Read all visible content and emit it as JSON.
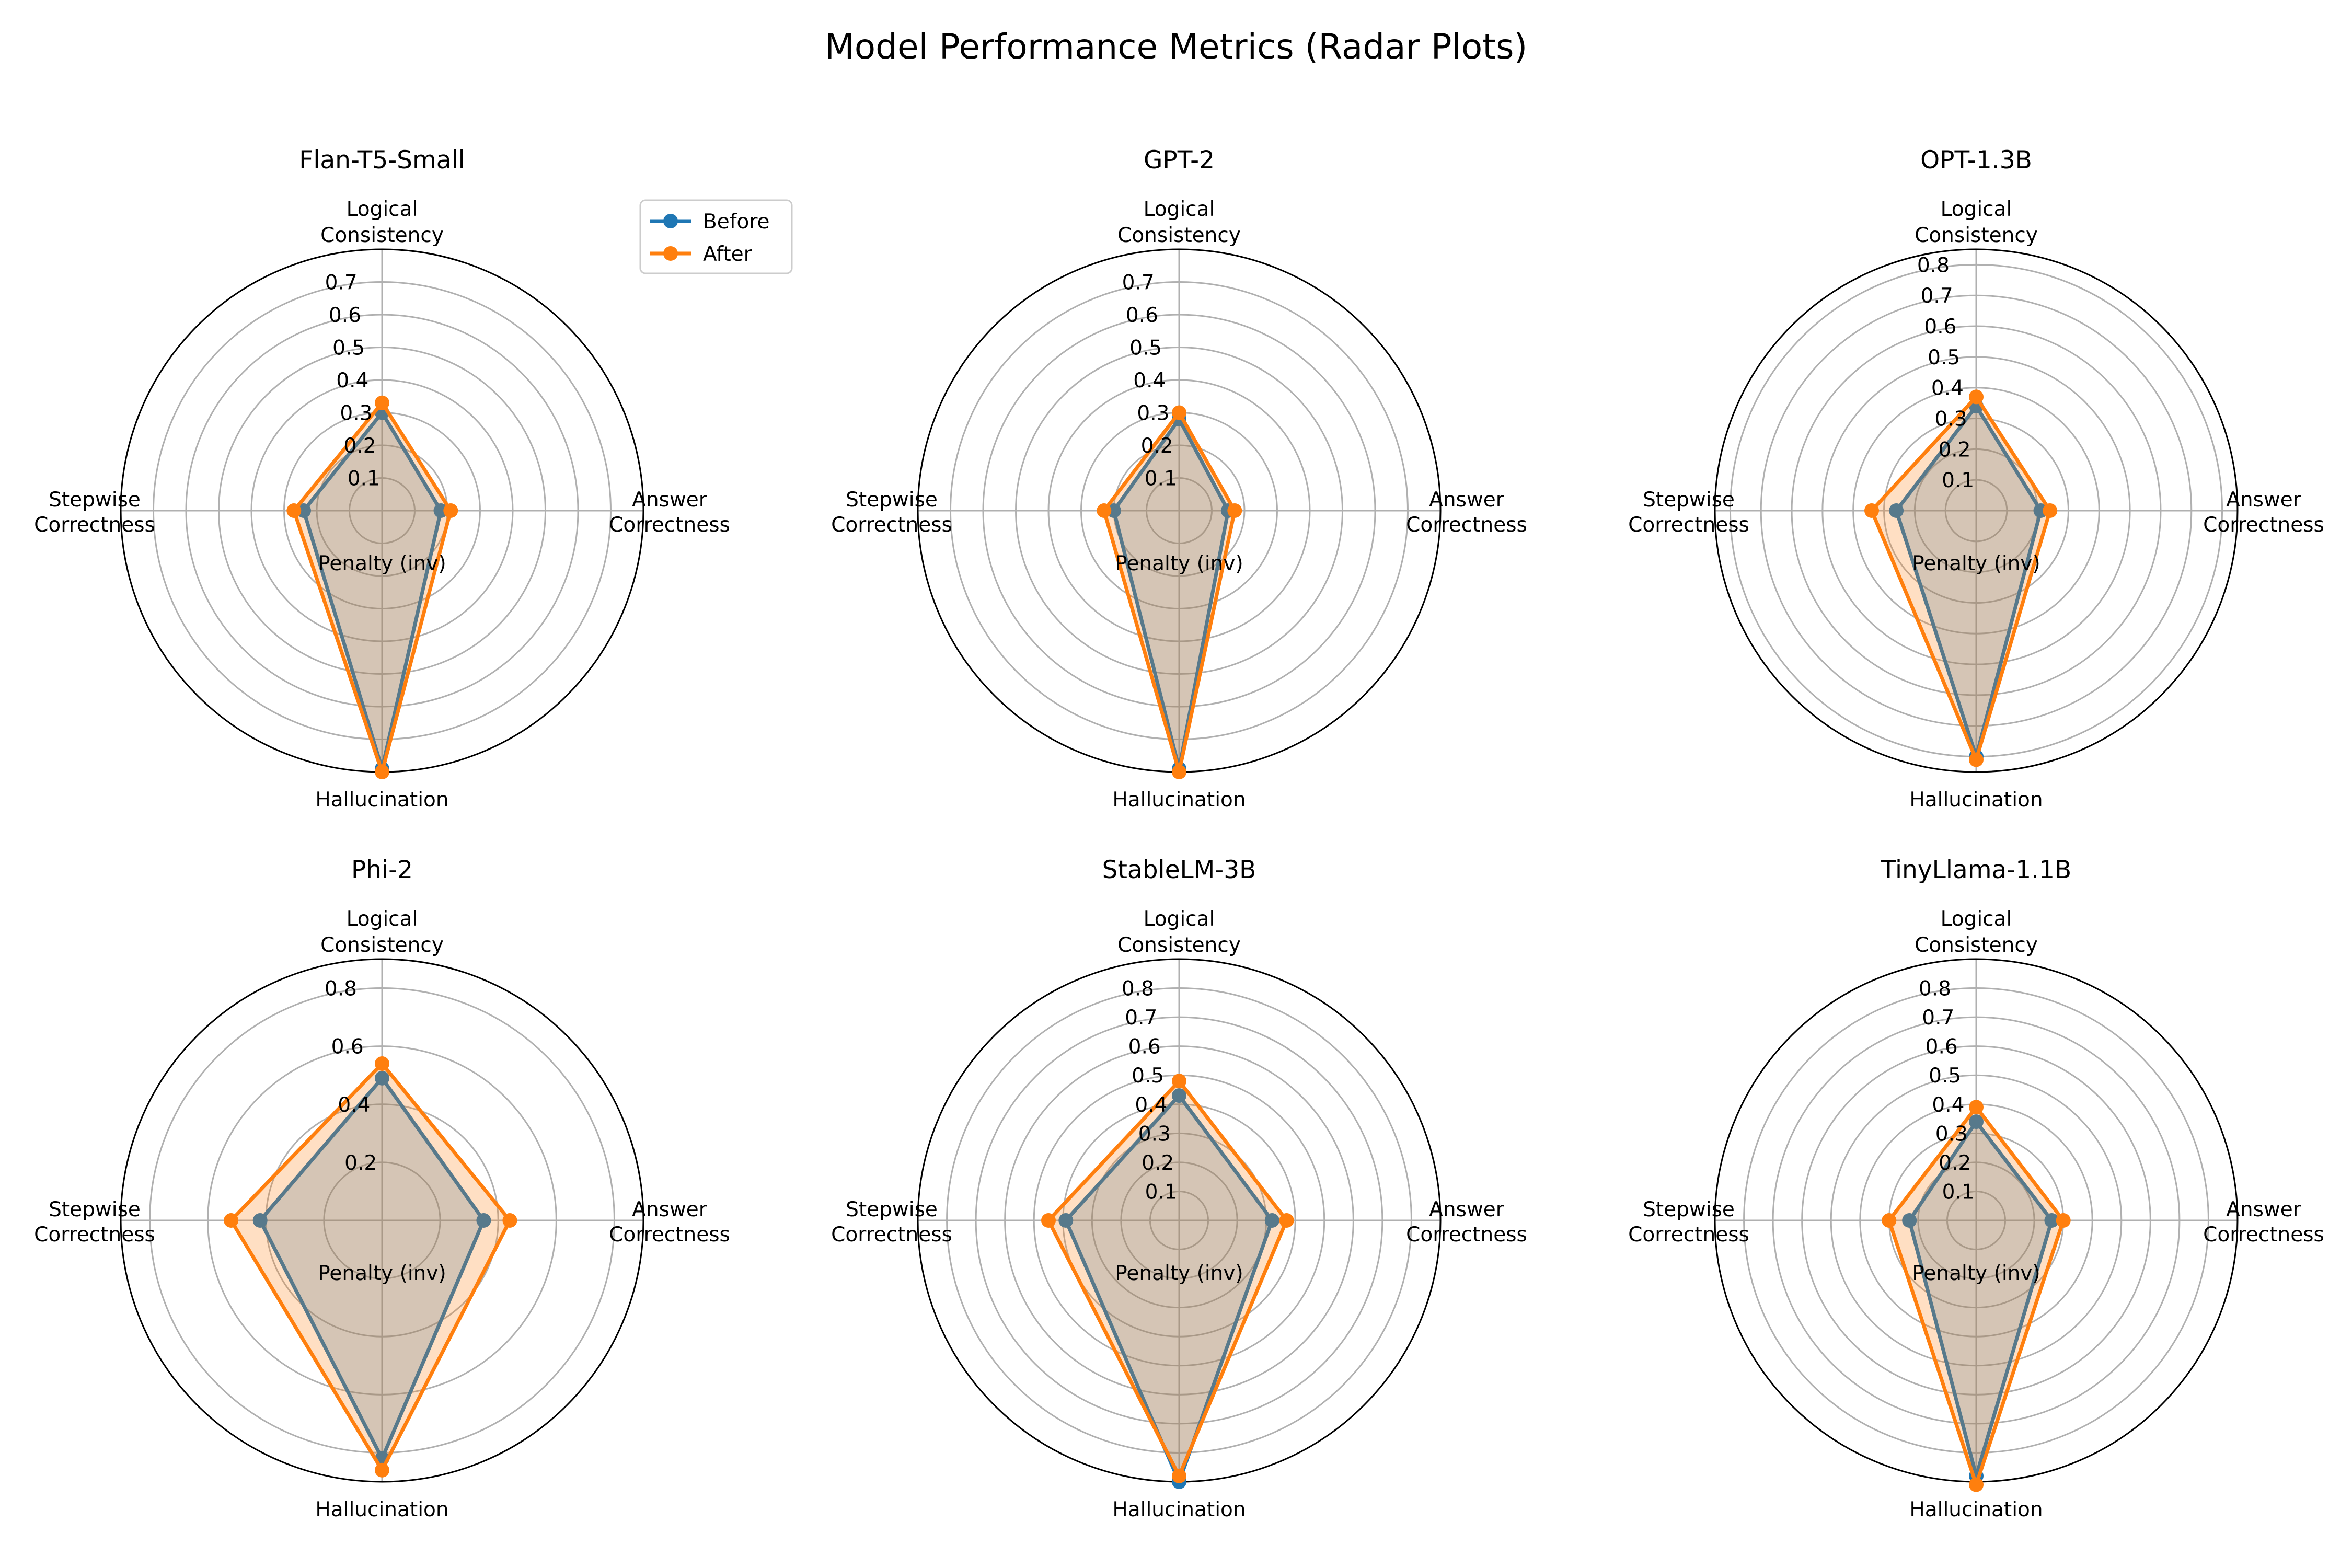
{
  "title": "Model Performance Metrics (Radar Plots)",
  "legend": {
    "placement": "upper-right-of-first-panel",
    "items": [
      "Before",
      "After"
    ]
  },
  "colors": {
    "before": "#1f77b4",
    "after": "#ff7f0e",
    "grid": "#b0b0b0",
    "spine": "#000000"
  },
  "axes_labels": [
    [
      "Logical",
      "Consistency"
    ],
    [
      "Answer",
      "Correctness"
    ],
    [
      "Hallucination",
      "Penalty (inv)"
    ],
    [
      "Stepwise",
      "Correctness"
    ]
  ],
  "chart_data": [
    {
      "type": "radar",
      "title": "Flan-T5-Small",
      "axes": [
        "Logical Consistency",
        "Answer Correctness",
        "Hallucination Penalty (inv)",
        "Stepwise Correctness"
      ],
      "rmax": 0.8,
      "rticks": [
        0.1,
        0.2,
        0.3,
        0.4,
        0.5,
        0.6,
        0.7
      ],
      "series": [
        {
          "name": "Before",
          "values": [
            0.3,
            0.18,
            0.79,
            0.24
          ]
        },
        {
          "name": "After",
          "values": [
            0.33,
            0.21,
            0.8,
            0.27
          ]
        }
      ]
    },
    {
      "type": "radar",
      "title": "GPT-2",
      "axes": [
        "Logical Consistency",
        "Answer Correctness",
        "Hallucination Penalty (inv)",
        "Stepwise Correctness"
      ],
      "rmax": 0.8,
      "rticks": [
        0.1,
        0.2,
        0.3,
        0.4,
        0.5,
        0.6,
        0.7
      ],
      "series": [
        {
          "name": "Before",
          "values": [
            0.28,
            0.15,
            0.79,
            0.2
          ]
        },
        {
          "name": "After",
          "values": [
            0.3,
            0.17,
            0.8,
            0.23
          ]
        }
      ]
    },
    {
      "type": "radar",
      "title": "OPT-1.3B",
      "axes": [
        "Logical Consistency",
        "Answer Correctness",
        "Hallucination Penalty (inv)",
        "Stepwise Correctness"
      ],
      "rmax": 0.85,
      "rticks": [
        0.1,
        0.2,
        0.3,
        0.4,
        0.5,
        0.6,
        0.7,
        0.8
      ],
      "series": [
        {
          "name": "Before",
          "values": [
            0.34,
            0.21,
            0.8,
            0.26
          ]
        },
        {
          "name": "After",
          "values": [
            0.37,
            0.24,
            0.81,
            0.34
          ]
        }
      ]
    },
    {
      "type": "radar",
      "title": "Phi-2",
      "axes": [
        "Logical Consistency",
        "Answer Correctness",
        "Hallucination Penalty (inv)",
        "Stepwise Correctness"
      ],
      "rmax": 0.9,
      "rticks": [
        0.2,
        0.4,
        0.6,
        0.8
      ],
      "series": [
        {
          "name": "Before",
          "values": [
            0.49,
            0.35,
            0.82,
            0.42
          ]
        },
        {
          "name": "After",
          "values": [
            0.54,
            0.44,
            0.86,
            0.52
          ]
        }
      ]
    },
    {
      "type": "radar",
      "title": "StableLM-3B",
      "axes": [
        "Logical Consistency",
        "Answer Correctness",
        "Hallucination Penalty (inv)",
        "Stepwise Correctness"
      ],
      "rmax": 0.9,
      "rticks": [
        0.1,
        0.2,
        0.3,
        0.4,
        0.5,
        0.6,
        0.7,
        0.8
      ],
      "series": [
        {
          "name": "Before",
          "values": [
            0.43,
            0.32,
            0.9,
            0.39
          ]
        },
        {
          "name": "After",
          "values": [
            0.48,
            0.37,
            0.88,
            0.45
          ]
        }
      ]
    },
    {
      "type": "radar",
      "title": "TinyLlama-1.1B",
      "axes": [
        "Logical Consistency",
        "Answer Correctness",
        "Hallucination Penalty (inv)",
        "Stepwise Correctness"
      ],
      "rmax": 0.9,
      "rticks": [
        0.1,
        0.2,
        0.3,
        0.4,
        0.5,
        0.6,
        0.7,
        0.8
      ],
      "series": [
        {
          "name": "Before",
          "values": [
            0.34,
            0.26,
            0.88,
            0.23
          ]
        },
        {
          "name": "After",
          "values": [
            0.39,
            0.3,
            0.91,
            0.3
          ]
        }
      ]
    }
  ]
}
